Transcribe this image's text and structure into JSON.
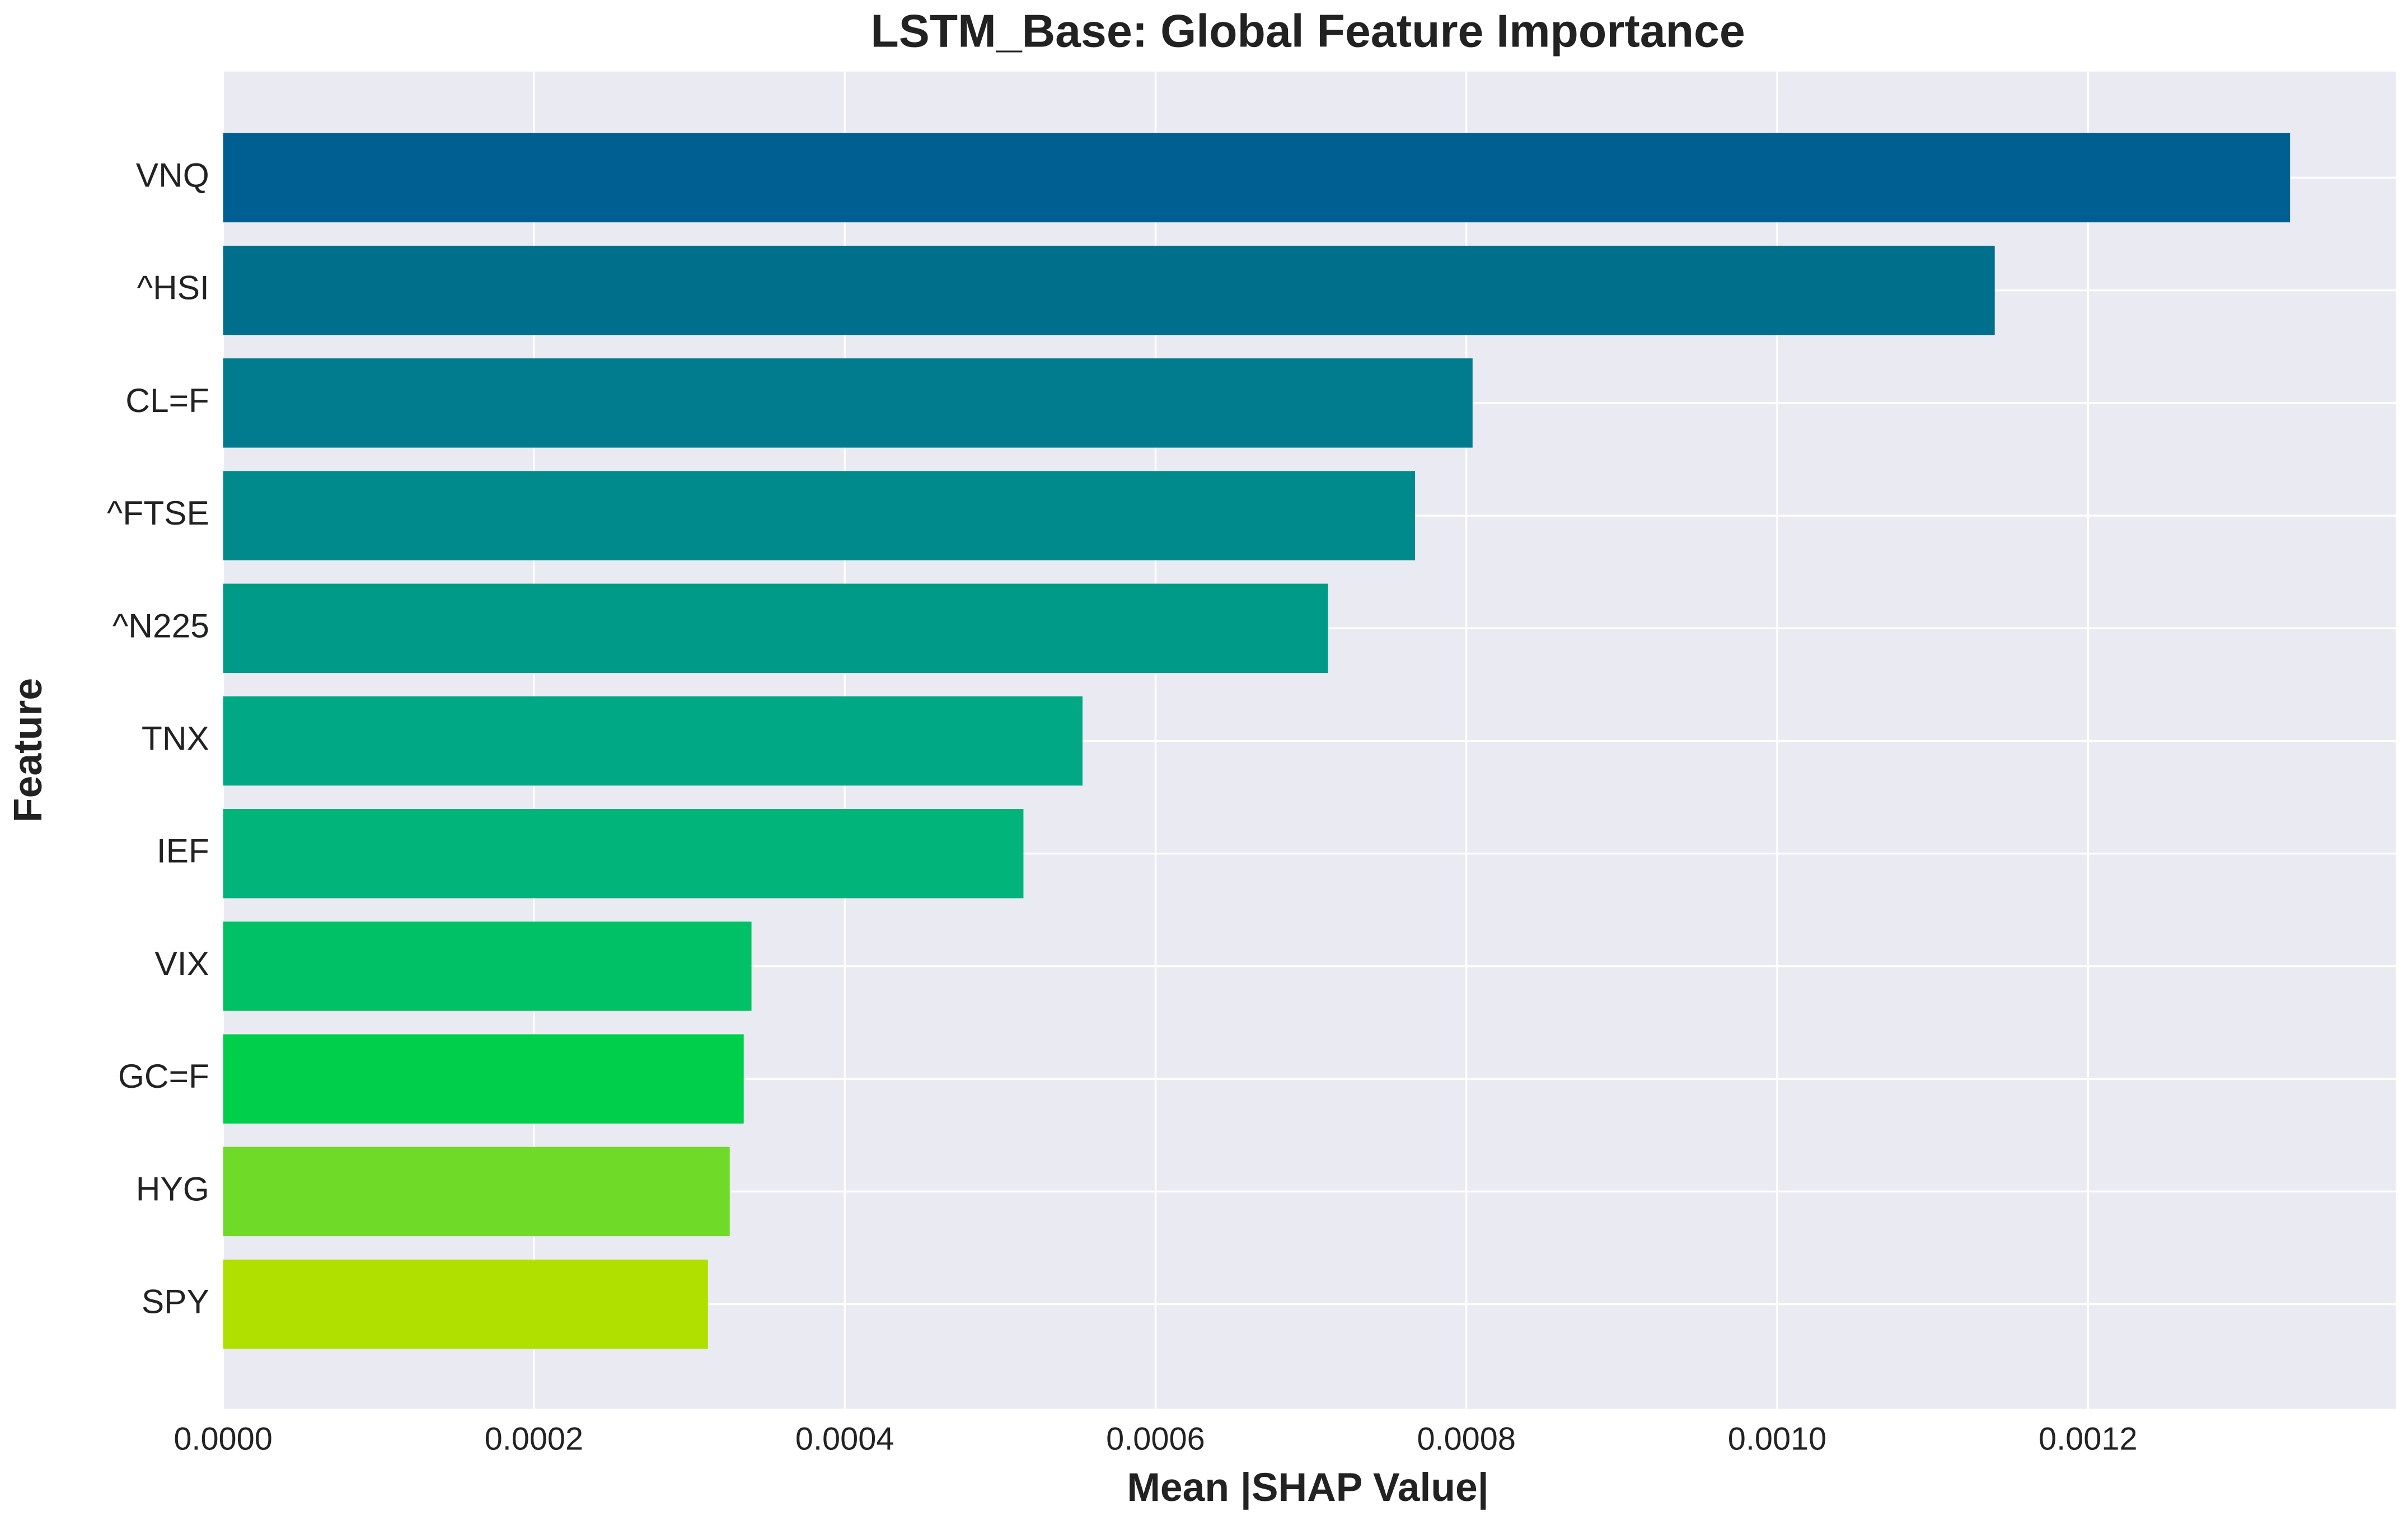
{
  "chart_data": {
    "type": "barh",
    "title": "LSTM_Base: Global Feature Importance",
    "xlabel": "Mean |SHAP Value|",
    "ylabel": "Feature",
    "categories": [
      "VNQ",
      "^HSI",
      "CL=F",
      "^FTSE",
      "^N225",
      "TNX",
      "IEF",
      "VIX",
      "GC=F",
      "HYG",
      "SPY"
    ],
    "values": [
      0.00133,
      0.00114,
      0.000804,
      0.000767,
      0.000711,
      0.000553,
      0.000515,
      0.00034,
      0.000335,
      0.000326,
      0.000312
    ],
    "colors": [
      "#005f92",
      "#006f8c",
      "#007c8e",
      "#008a8c",
      "#009a88",
      "#00a886",
      "#00b47a",
      "#00c166",
      "#00cf4c",
      "#70da28",
      "#b0e000"
    ],
    "xlim": [
      0,
      0.001398
    ],
    "xticks": [
      {
        "value": 0,
        "label": "0.0000"
      },
      {
        "value": 0.0002,
        "label": "0.0002"
      },
      {
        "value": 0.0004,
        "label": "0.0004"
      },
      {
        "value": 0.0006,
        "label": "0.0006"
      },
      {
        "value": 0.0008,
        "label": "0.0008"
      },
      {
        "value": 0.001,
        "label": "0.0010"
      },
      {
        "value": 0.0012,
        "label": "0.0012"
      }
    ],
    "grid": true
  }
}
